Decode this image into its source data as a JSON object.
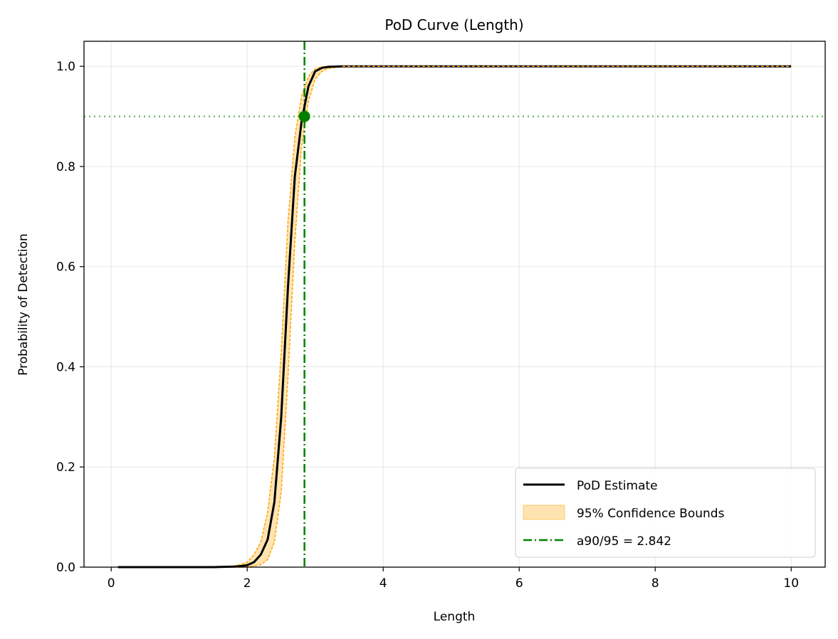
{
  "chart_data": {
    "type": "line",
    "title": "PoD Curve (Length)",
    "xlabel": "Length",
    "ylabel": "Probability of Detection",
    "xlim": [
      -0.4,
      10.5
    ],
    "ylim": [
      0.0,
      1.05
    ],
    "xticks": [
      0,
      2,
      4,
      6,
      8,
      10
    ],
    "xtick_labels": [
      "0",
      "2",
      "4",
      "6",
      "8",
      "10"
    ],
    "yticks": [
      0.0,
      0.2,
      0.4,
      0.6,
      0.8,
      1.0
    ],
    "ytick_labels": [
      "0.0",
      "0.2",
      "0.4",
      "0.6",
      "0.8",
      "1.0"
    ],
    "grid": true,
    "legend_position": "lower right",
    "series": [
      {
        "name": "PoD Estimate",
        "kind": "line",
        "color": "#000000",
        "x": [
          0.1,
          1.5,
          1.8,
          1.9,
          2.0,
          2.1,
          2.2,
          2.3,
          2.4,
          2.5,
          2.6,
          2.7,
          2.8,
          2.9,
          3.0,
          3.1,
          3.2,
          3.4,
          4.0,
          10.0
        ],
        "y": [
          0.0,
          0.0,
          0.001,
          0.002,
          0.004,
          0.01,
          0.025,
          0.055,
          0.13,
          0.3,
          0.56,
          0.78,
          0.89,
          0.96,
          0.99,
          0.997,
          0.999,
          1.0,
          1.0,
          1.0
        ]
      },
      {
        "name": "95% Confidence Bounds",
        "kind": "band",
        "color": "#ffa500",
        "x": [
          0.1,
          1.5,
          1.8,
          1.9,
          2.0,
          2.1,
          2.2,
          2.3,
          2.4,
          2.5,
          2.6,
          2.7,
          2.8,
          2.9,
          3.0,
          3.1,
          3.2,
          3.4,
          4.0,
          10.0
        ],
        "lower": [
          0.0,
          0.0,
          0.0,
          0.0,
          0.001,
          0.002,
          0.005,
          0.015,
          0.05,
          0.15,
          0.38,
          0.65,
          0.84,
          0.93,
          0.975,
          0.99,
          0.996,
          0.999,
          1.0,
          1.0
        ],
        "upper": [
          0.0,
          0.0,
          0.002,
          0.005,
          0.01,
          0.025,
          0.05,
          0.11,
          0.22,
          0.43,
          0.69,
          0.86,
          0.94,
          0.98,
          0.995,
          0.999,
          1.0,
          1.0,
          1.0,
          1.0
        ]
      }
    ],
    "a90_95": {
      "name": "a90/95 = 2.842",
      "x": 2.842,
      "y": 0.9,
      "color": "#008000"
    },
    "reference_pod": 0.9
  }
}
